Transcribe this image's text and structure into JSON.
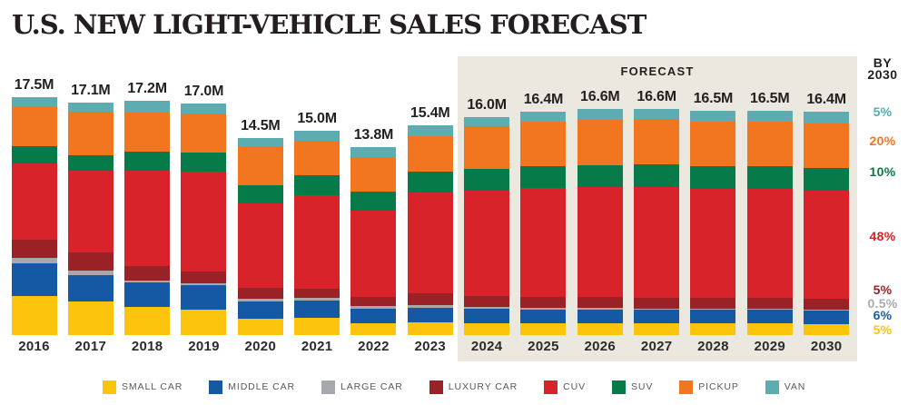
{
  "title": "U.S. NEW LIGHT-VEHICLE SALES FORECAST",
  "chart_data": {
    "type": "bar",
    "stacked": true,
    "title": "U.S. NEW LIGHT-VEHICLE SALES FORECAST",
    "unit": "millions of vehicles",
    "categories": [
      "2016",
      "2017",
      "2018",
      "2019",
      "2020",
      "2021",
      "2022",
      "2023",
      "2024",
      "2025",
      "2026",
      "2027",
      "2028",
      "2029",
      "2030"
    ],
    "totals_labels": [
      "17.5M",
      "17.1M",
      "17.2M",
      "17.0M",
      "14.5M",
      "15.0M",
      "13.8M",
      "15.4M",
      "16.0M",
      "16.4M",
      "16.6M",
      "16.6M",
      "16.5M",
      "16.5M",
      "16.4M"
    ],
    "totals": [
      17.5,
      17.1,
      17.2,
      17.0,
      14.5,
      15.0,
      13.8,
      15.4,
      16.0,
      16.4,
      16.6,
      16.6,
      16.5,
      16.5,
      16.4
    ],
    "series": [
      {
        "name": "SMALL CAR",
        "color": "#fdc40d",
        "values": [
          2.9,
          2.5,
          2.1,
          1.9,
          1.2,
          1.25,
          0.9,
          0.95,
          0.9,
          0.9,
          0.88,
          0.86,
          0.85,
          0.84,
          0.82
        ]
      },
      {
        "name": "MIDDLE CAR",
        "color": "#1558a4",
        "values": [
          2.4,
          1.9,
          1.75,
          1.75,
          1.25,
          1.3,
          1.05,
          1.05,
          1.05,
          1.0,
          1.0,
          1.0,
          1.0,
          1.0,
          0.98
        ]
      },
      {
        "name": "LARGE CAR",
        "color": "#a6a8ab",
        "values": [
          0.4,
          0.35,
          0.15,
          0.15,
          0.2,
          0.2,
          0.2,
          0.2,
          0.15,
          0.12,
          0.11,
          0.1,
          0.09,
          0.09,
          0.08
        ]
      },
      {
        "name": "LUXURY CAR",
        "color": "#9a2125",
        "values": [
          1.3,
          1.35,
          1.1,
          0.9,
          0.85,
          0.65,
          0.65,
          0.85,
          0.8,
          0.8,
          0.8,
          0.8,
          0.82,
          0.82,
          0.82
        ]
      },
      {
        "name": "CUV",
        "color": "#d8232a",
        "values": [
          5.6,
          6.0,
          7.0,
          7.3,
          6.2,
          6.9,
          6.35,
          7.45,
          7.7,
          7.95,
          8.05,
          8.1,
          8.0,
          8.0,
          7.9
        ]
      },
      {
        "name": "SUV",
        "color": "#067b49",
        "values": [
          1.3,
          1.1,
          1.35,
          1.4,
          1.3,
          1.45,
          1.4,
          1.5,
          1.6,
          1.65,
          1.66,
          1.66,
          1.65,
          1.65,
          1.64
        ]
      },
      {
        "name": "PICKUP",
        "color": "#f2761f",
        "values": [
          2.9,
          3.2,
          2.9,
          2.9,
          2.9,
          2.55,
          2.5,
          2.6,
          3.15,
          3.25,
          3.3,
          3.33,
          3.27,
          3.28,
          3.28
        ]
      },
      {
        "name": "VAN",
        "color": "#5cacb2",
        "values": [
          0.7,
          0.7,
          0.85,
          0.7,
          0.6,
          0.7,
          0.75,
          0.8,
          0.65,
          0.73,
          0.8,
          0.75,
          0.82,
          0.82,
          0.88
        ]
      }
    ],
    "forecast_label": "FORECAST",
    "forecast_years": [
      "2024",
      "2025",
      "2026",
      "2027",
      "2028",
      "2029",
      "2030"
    ],
    "legend_position": "bottom",
    "grid": false,
    "by_2030": {
      "title_line1": "BY",
      "title_line2": "2030",
      "items": [
        {
          "text": "5%",
          "series": "VAN",
          "color": "#4faeb5"
        },
        {
          "text": "20%",
          "series": "PICKUP",
          "color": "#f2761f"
        },
        {
          "text": "10%",
          "series": "SUV",
          "color": "#067b49"
        },
        {
          "text": "48%",
          "series": "CUV",
          "color": "#d8232a"
        },
        {
          "text": "5%",
          "series": "LUXURY CAR",
          "color": "#9a2125"
        },
        {
          "text": "0.5%",
          "series": "LARGE CAR",
          "color": "#a9abae"
        },
        {
          "text": "6%",
          "series": "MIDDLE CAR",
          "color": "#1a5da6"
        },
        {
          "text": "5%",
          "series": "SMALL CAR",
          "color": "#fcc50f"
        }
      ]
    }
  }
}
